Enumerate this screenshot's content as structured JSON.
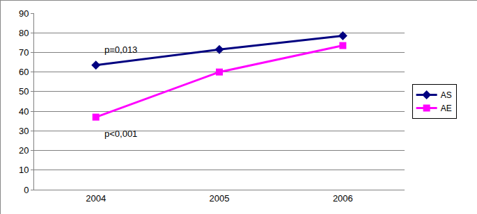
{
  "chart_data": {
    "type": "line",
    "categories": [
      "2004",
      "2005",
      "2006"
    ],
    "series": [
      {
        "name": "AS",
        "color": "#000080",
        "marker": "diamond",
        "values": [
          63.5,
          71.5,
          78.5
        ]
      },
      {
        "name": "AE",
        "color": "#ff00ff",
        "marker": "square",
        "values": [
          37,
          60,
          73.5
        ]
      }
    ],
    "ylim": [
      0,
      90
    ],
    "yticks": [
      0,
      10,
      20,
      30,
      40,
      50,
      60,
      70,
      80,
      90
    ],
    "grid": true,
    "legend": "right",
    "annotations": [
      "p=0,013",
      "p<0,001"
    ]
  }
}
